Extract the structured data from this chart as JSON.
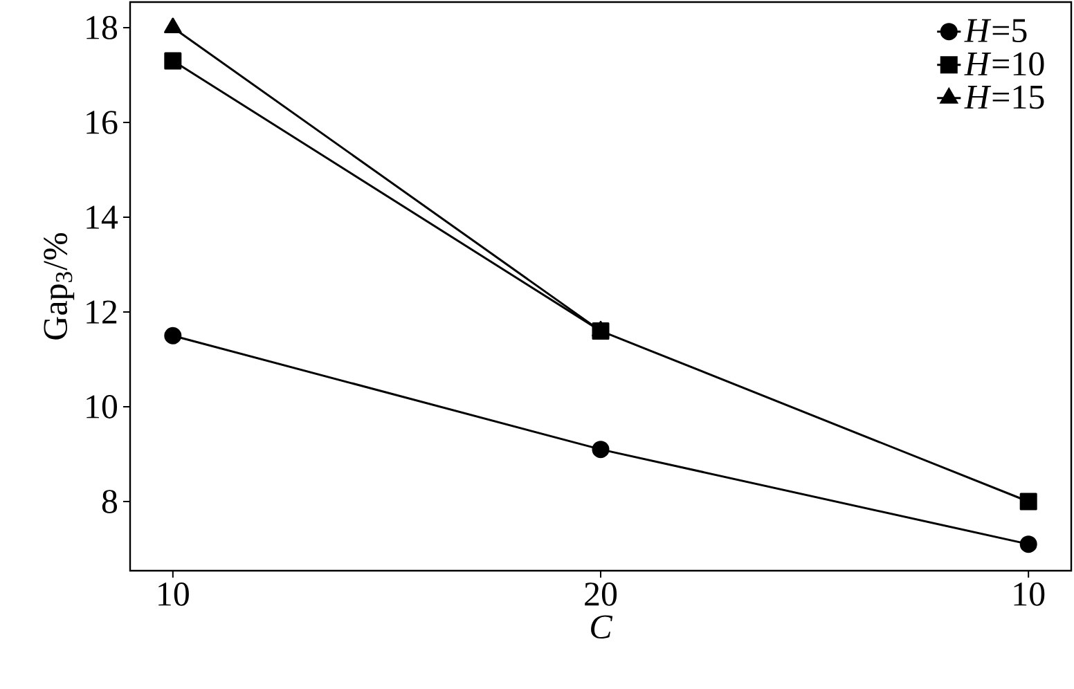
{
  "chart_data": {
    "type": "line",
    "xlabel": "C",
    "ylabel": "Gap$_{3}$/%",
    "categories": [
      "10",
      "20",
      "10"
    ],
    "ylim": [
      6.54,
      18.54
    ],
    "yticks": [
      8,
      10,
      12,
      14,
      16,
      18
    ],
    "grid": false,
    "legend": "top right",
    "line_style": "solid",
    "series": [
      {
        "name": "*H*=5",
        "color": "#000000",
        "marker": "circle",
        "values": [
          11.5,
          9.1,
          7.1
        ]
      },
      {
        "name": "*H*=10",
        "color": "#000000",
        "marker": "square",
        "values": [
          17.3,
          11.6,
          8.0
        ]
      },
      {
        "name": "*H*=15",
        "color": "#000000",
        "marker": "triangle",
        "values": [
          18.0,
          11.6,
          null
        ]
      }
    ]
  }
}
